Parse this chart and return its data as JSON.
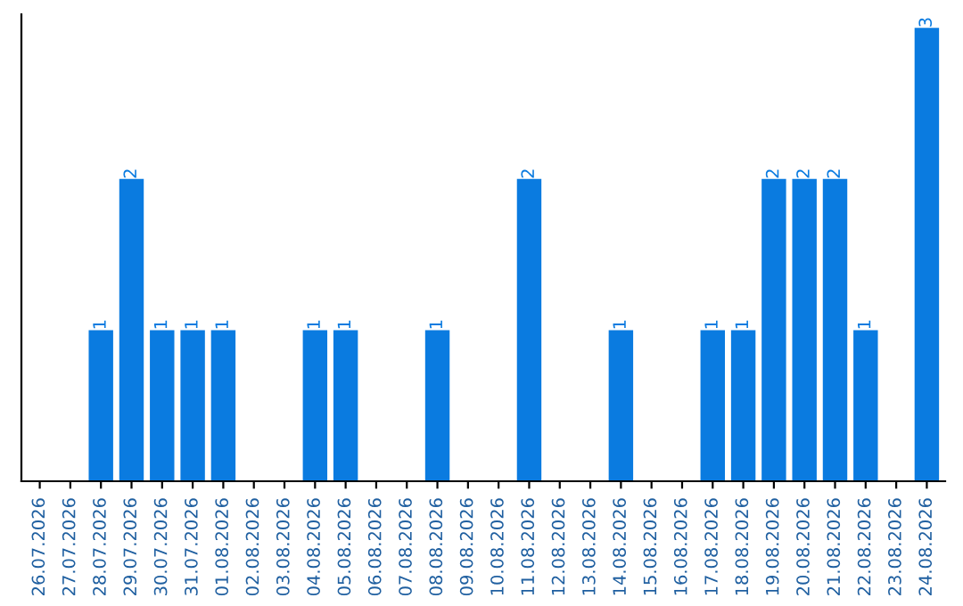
{
  "chart_data": {
    "type": "bar",
    "categories": [
      "26.07.2026",
      "27.07.2026",
      "28.07.2026",
      "29.07.2026",
      "30.07.2026",
      "31.07.2026",
      "01.08.2026",
      "02.08.2026",
      "03.08.2026",
      "04.08.2026",
      "05.08.2026",
      "06.08.2026",
      "07.08.2026",
      "08.08.2026",
      "09.08.2026",
      "10.08.2026",
      "11.08.2026",
      "12.08.2026",
      "13.08.2026",
      "14.08.2026",
      "15.08.2026",
      "16.08.2026",
      "17.08.2026",
      "18.08.2026",
      "19.08.2026",
      "20.08.2026",
      "21.08.2026",
      "22.08.2026",
      "23.08.2026",
      "24.08.2026"
    ],
    "values": [
      0,
      0,
      1,
      2,
      1,
      1,
      1,
      0,
      0,
      1,
      1,
      0,
      0,
      1,
      0,
      0,
      2,
      0,
      0,
      1,
      0,
      0,
      1,
      1,
      2,
      2,
      2,
      1,
      0,
      3
    ],
    "value_labels": [
      null,
      null,
      "1",
      "2",
      "1",
      "1",
      "1",
      null,
      null,
      "1",
      "1",
      null,
      null,
      "1",
      null,
      null,
      "2",
      null,
      null,
      "1",
      null,
      null,
      "1",
      "1",
      "2",
      "2",
      "2",
      "1",
      null,
      "3"
    ],
    "color": "#0a7be0",
    "tick_labels": "x",
    "grid": false,
    "legend": false
  }
}
